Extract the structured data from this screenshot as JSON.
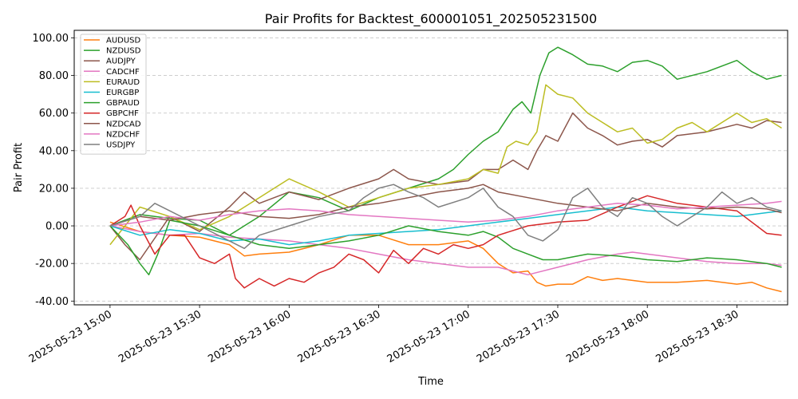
{
  "chart_data": {
    "type": "line",
    "title": "Pair Profits for Backtest_600001051_202505231500",
    "xlabel": "Time",
    "ylabel": "Pair Profit",
    "x_unit": "minutes after 2025-05-23 15:00",
    "xlim": [
      -12,
      227
    ],
    "ylim": [
      -42,
      104
    ],
    "grid": "horizontal dashed",
    "legend_position": "top-left",
    "x_ticks": [
      {
        "value": 0,
        "label": "2025-05-23 15:00"
      },
      {
        "value": 30,
        "label": "2025-05-23 15:30"
      },
      {
        "value": 60,
        "label": "2025-05-23 16:00"
      },
      {
        "value": 90,
        "label": "2025-05-23 16:30"
      },
      {
        "value": 120,
        "label": "2025-05-23 17:00"
      },
      {
        "value": 150,
        "label": "2025-05-23 17:30"
      },
      {
        "value": 180,
        "label": "2025-05-23 18:00"
      },
      {
        "value": 210,
        "label": "2025-05-23 18:30"
      }
    ],
    "y_ticks": [
      {
        "value": -40,
        "label": "-40.00"
      },
      {
        "value": -20,
        "label": "-20.00"
      },
      {
        "value": 0,
        "label": "0.00"
      },
      {
        "value": 20,
        "label": "20.00"
      },
      {
        "value": 40,
        "label": "40.00"
      },
      {
        "value": 60,
        "label": "60.00"
      },
      {
        "value": 80,
        "label": "80.00"
      },
      {
        "value": 100,
        "label": "100.00"
      }
    ],
    "series": [
      {
        "name": "AUDUSD",
        "color": "#ff7f0e",
        "x": [
          0,
          10,
          20,
          30,
          40,
          45,
          50,
          60,
          70,
          80,
          90,
          100,
          110,
          120,
          125,
          130,
          135,
          140,
          143,
          146,
          150,
          155,
          160,
          165,
          170,
          180,
          190,
          200,
          210,
          215,
          220,
          225
        ],
        "y": [
          2,
          -3,
          -5,
          -6,
          -10,
          -16,
          -15,
          -14,
          -10,
          -5,
          -5,
          -10,
          -10,
          -8,
          -12,
          -20,
          -25,
          -24,
          -30,
          -32,
          -31,
          -31,
          -27,
          -29,
          -28,
          -30,
          -30,
          -29,
          -31,
          -30,
          -33,
          -35
        ]
      },
      {
        "name": "NZDUSD",
        "color": "#2ca02c",
        "x": [
          0,
          10,
          20,
          30,
          40,
          50,
          60,
          70,
          80,
          90,
          100,
          110,
          115,
          120,
          125,
          130,
          135,
          138,
          141,
          144,
          147,
          150,
          155,
          160,
          165,
          170,
          175,
          180,
          185,
          190,
          200,
          210,
          215,
          220,
          225
        ],
        "y": [
          0,
          6,
          4,
          3,
          -5,
          5,
          18,
          15,
          8,
          15,
          20,
          25,
          30,
          38,
          45,
          50,
          62,
          66,
          60,
          80,
          92,
          95,
          91,
          86,
          85,
          82,
          87,
          88,
          85,
          78,
          82,
          88,
          82,
          78,
          80
        ]
      },
      {
        "name": "AUDJPY",
        "color": "#8c564b",
        "x": [
          0,
          5,
          10,
          20,
          30,
          40,
          45,
          50,
          60,
          70,
          80,
          90,
          95,
          100,
          110,
          120,
          125,
          130,
          135,
          140,
          143,
          146,
          150,
          155,
          160,
          165,
          170,
          175,
          180,
          185,
          190,
          200,
          210,
          215,
          220,
          225
        ],
        "y": [
          0,
          -10,
          -18,
          5,
          -3,
          10,
          18,
          12,
          18,
          14,
          20,
          25,
          30,
          25,
          22,
          24,
          30,
          30,
          35,
          30,
          40,
          48,
          45,
          60,
          52,
          48,
          43,
          45,
          46,
          42,
          48,
          50,
          54,
          52,
          56,
          55
        ]
      },
      {
        "name": "CADCHF",
        "color": "#e377c2",
        "x": [
          0,
          10,
          20,
          30,
          40,
          50,
          60,
          70,
          80,
          90,
          100,
          110,
          120,
          130,
          135,
          140,
          150,
          160,
          170,
          175,
          180,
          190,
          200,
          210,
          220,
          225
        ],
        "y": [
          0,
          -3,
          -5,
          -4,
          -6,
          -7,
          -8,
          -10,
          -12,
          -15,
          -18,
          -20,
          -22,
          -22,
          -24,
          -26,
          -22,
          -18,
          -15,
          -14,
          -15,
          -17,
          -19,
          -20,
          -20,
          -21
        ]
      },
      {
        "name": "EURAUD",
        "color": "#bcbd22",
        "x": [
          0,
          10,
          20,
          30,
          40,
          50,
          55,
          60,
          70,
          80,
          90,
          100,
          110,
          120,
          125,
          130,
          133,
          136,
          140,
          143,
          146,
          150,
          155,
          160,
          165,
          170,
          175,
          180,
          185,
          190,
          195,
          200,
          210,
          215,
          220,
          225
        ],
        "y": [
          -10,
          10,
          5,
          -2,
          5,
          15,
          20,
          25,
          18,
          10,
          15,
          20,
          22,
          25,
          30,
          28,
          42,
          45,
          43,
          50,
          75,
          70,
          68,
          60,
          55,
          50,
          52,
          44,
          46,
          52,
          55,
          50,
          60,
          55,
          57,
          52
        ]
      },
      {
        "name": "EURGBP",
        "color": "#17becf",
        "x": [
          0,
          10,
          20,
          30,
          40,
          50,
          60,
          70,
          80,
          90,
          100,
          110,
          120,
          130,
          140,
          150,
          160,
          170,
          180,
          190,
          200,
          210,
          220,
          225
        ],
        "y": [
          0,
          -5,
          -2,
          -4,
          -8,
          -7,
          -10,
          -8,
          -5,
          -4,
          -3,
          -2,
          0,
          2,
          4,
          6,
          8,
          10,
          8,
          7,
          6,
          5,
          7,
          8
        ]
      },
      {
        "name": "GBPAUD",
        "color": "#2ca02c",
        "x": [
          0,
          6,
          10,
          13,
          16,
          20,
          30,
          40,
          50,
          60,
          70,
          80,
          90,
          100,
          110,
          120,
          125,
          130,
          135,
          140,
          145,
          150,
          160,
          170,
          180,
          190,
          200,
          210,
          220,
          225
        ],
        "y": [
          0,
          -10,
          -20,
          -26,
          -15,
          3,
          0,
          -5,
          -10,
          -12,
          -10,
          -8,
          -5,
          0,
          -3,
          -5,
          -3,
          -6,
          -12,
          -15,
          -18,
          -18,
          -15,
          -16,
          -18,
          -19,
          -17,
          -18,
          -20,
          -22
        ]
      },
      {
        "name": "GBPCHF",
        "color": "#d62728",
        "x": [
          0,
          5,
          7,
          10,
          15,
          20,
          25,
          30,
          35,
          40,
          42,
          45,
          50,
          55,
          60,
          65,
          70,
          75,
          80,
          85,
          90,
          95,
          100,
          105,
          110,
          115,
          120,
          125,
          130,
          140,
          150,
          160,
          170,
          180,
          190,
          200,
          210,
          220,
          225
        ],
        "y": [
          0,
          5,
          11,
          0,
          -15,
          -5,
          -5,
          -17,
          -20,
          -15,
          -28,
          -33,
          -28,
          -32,
          -28,
          -30,
          -25,
          -22,
          -15,
          -18,
          -25,
          -13,
          -20,
          -12,
          -15,
          -10,
          -12,
          -10,
          -5,
          0,
          2,
          3,
          10,
          16,
          12,
          10,
          8,
          -4,
          -5
        ]
      },
      {
        "name": "NZDCAD",
        "color": "#8c564b",
        "x": [
          0,
          10,
          20,
          30,
          40,
          50,
          60,
          70,
          80,
          90,
          100,
          110,
          120,
          125,
          130,
          140,
          150,
          160,
          170,
          180,
          190,
          200,
          210,
          220,
          225
        ],
        "y": [
          0,
          5,
          3,
          6,
          8,
          5,
          4,
          6,
          10,
          12,
          15,
          18,
          20,
          22,
          18,
          15,
          12,
          10,
          8,
          12,
          10,
          9,
          10,
          9,
          7
        ]
      },
      {
        "name": "NZDCHF",
        "color": "#e377c2",
        "x": [
          0,
          10,
          20,
          30,
          40,
          50,
          60,
          70,
          80,
          90,
          100,
          110,
          120,
          130,
          140,
          150,
          160,
          170,
          180,
          190,
          200,
          210,
          220,
          225
        ],
        "y": [
          0,
          2,
          5,
          3,
          6,
          8,
          9,
          8,
          6,
          5,
          4,
          3,
          2,
          3,
          5,
          8,
          10,
          12,
          11,
          9,
          10,
          11,
          12,
          13
        ]
      },
      {
        "name": "USDJPY",
        "color": "#7f7f7f",
        "x": [
          0,
          10,
          15,
          20,
          30,
          40,
          45,
          50,
          60,
          70,
          80,
          85,
          90,
          95,
          100,
          105,
          110,
          120,
          125,
          130,
          135,
          140,
          145,
          150,
          155,
          160,
          165,
          170,
          175,
          180,
          185,
          190,
          200,
          205,
          210,
          215,
          220,
          225
        ],
        "y": [
          0,
          5,
          12,
          8,
          0,
          -8,
          -12,
          -5,
          0,
          5,
          8,
          15,
          20,
          22,
          18,
          15,
          10,
          15,
          20,
          10,
          5,
          -5,
          -8,
          -2,
          15,
          20,
          10,
          5,
          15,
          12,
          5,
          0,
          10,
          18,
          12,
          15,
          10,
          8
        ]
      }
    ]
  }
}
